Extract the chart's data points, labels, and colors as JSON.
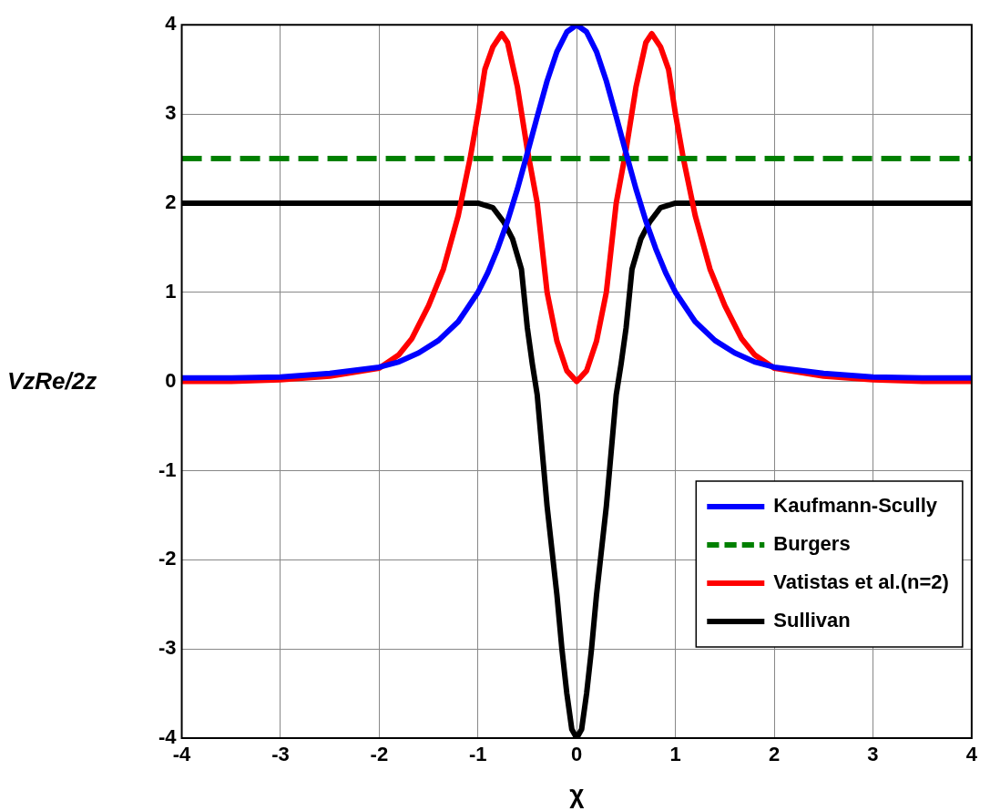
{
  "chart_data": {
    "type": "line",
    "xlabel": "χ",
    "ylabel": "VzRe/2z",
    "xlim": [
      -4,
      4
    ],
    "ylim": [
      -4,
      4
    ],
    "xticks": [
      -4,
      -3,
      -2,
      -1,
      0,
      1,
      2,
      3,
      4
    ],
    "yticks": [
      -4,
      -3,
      -2,
      -1,
      0,
      1,
      2,
      3,
      4
    ],
    "grid": true,
    "legend": "bottom right",
    "marker": "none",
    "series": [
      {
        "name": "Kaufmann-Scully",
        "color": "#0000ff",
        "x": [
          -4,
          -3.5,
          -3,
          -2.5,
          -2,
          -1.8,
          -1.6,
          -1.4,
          -1.2,
          -1,
          -0.9,
          -0.8,
          -0.7,
          -0.6,
          -0.5,
          -0.4,
          -0.3,
          -0.2,
          -0.1,
          0,
          0.1,
          0.2,
          0.3,
          0.4,
          0.5,
          0.6,
          0.7,
          0.8,
          0.9,
          1,
          1.2,
          1.4,
          1.6,
          1.8,
          2,
          2.5,
          3,
          3.5,
          4
        ],
        "values": [
          0.04,
          0.04,
          0.05,
          0.09,
          0.16,
          0.22,
          0.32,
          0.46,
          0.67,
          1.0,
          1.22,
          1.49,
          1.8,
          2.16,
          2.56,
          2.97,
          3.37,
          3.7,
          3.92,
          4,
          3.92,
          3.7,
          3.37,
          2.97,
          2.56,
          2.16,
          1.8,
          1.49,
          1.22,
          1.0,
          0.67,
          0.46,
          0.32,
          0.22,
          0.16,
          0.09,
          0.05,
          0.04,
          0.04
        ]
      },
      {
        "name": "Burgers",
        "color": "#008000",
        "line_style": "dashed",
        "x": [
          -4,
          4
        ],
        "values": [
          2.5,
          2.5
        ]
      },
      {
        "name": "Vatistas et al.(n=2)",
        "color": "#ff0000",
        "x": [
          -4,
          -3.5,
          -3,
          -2.5,
          -2,
          -1.8,
          -1.67,
          -1.5,
          -1.35,
          -1.2,
          -1.08,
          -1,
          -0.93,
          -0.85,
          -0.76,
          -0.7,
          -0.6,
          -0.5,
          -0.4,
          -0.3,
          -0.2,
          -0.1,
          0,
          0.1,
          0.2,
          0.3,
          0.4,
          0.5,
          0.6,
          0.7,
          0.76,
          0.85,
          0.93,
          1,
          1.08,
          1.2,
          1.35,
          1.5,
          1.67,
          1.8,
          2,
          2.5,
          3,
          3.5,
          4
        ],
        "values": [
          0,
          0,
          0.02,
          0.06,
          0.15,
          0.3,
          0.48,
          0.85,
          1.26,
          1.86,
          2.5,
          3.0,
          3.5,
          3.75,
          3.9,
          3.8,
          3.3,
          2.6,
          2.0,
          1.0,
          0.45,
          0.12,
          0,
          0.12,
          0.45,
          1.0,
          2.0,
          2.6,
          3.3,
          3.8,
          3.9,
          3.75,
          3.5,
          3.0,
          2.5,
          1.86,
          1.26,
          0.85,
          0.48,
          0.3,
          0.15,
          0.06,
          0.02,
          0,
          0
        ]
      },
      {
        "name": "Sullivan",
        "color": "#000000",
        "x": [
          -4,
          -1,
          -0.85,
          -0.74,
          -0.65,
          -0.56,
          -0.5,
          -0.45,
          -0.4,
          -0.34,
          -0.3,
          -0.25,
          -0.2,
          -0.15,
          -0.1,
          -0.05,
          0,
          0.05,
          0.1,
          0.15,
          0.2,
          0.25,
          0.3,
          0.34,
          0.4,
          0.45,
          0.5,
          0.56,
          0.65,
          0.74,
          0.85,
          1,
          4
        ],
        "values": [
          2,
          2,
          1.95,
          1.79,
          1.6,
          1.26,
          0.6,
          0.2,
          -0.15,
          -0.9,
          -1.4,
          -1.9,
          -2.4,
          -3.0,
          -3.5,
          -3.9,
          -4,
          -3.9,
          -3.5,
          -3.0,
          -2.4,
          -1.9,
          -1.4,
          -0.9,
          -0.15,
          0.2,
          0.6,
          1.26,
          1.6,
          1.79,
          1.95,
          2,
          2
        ]
      }
    ]
  }
}
